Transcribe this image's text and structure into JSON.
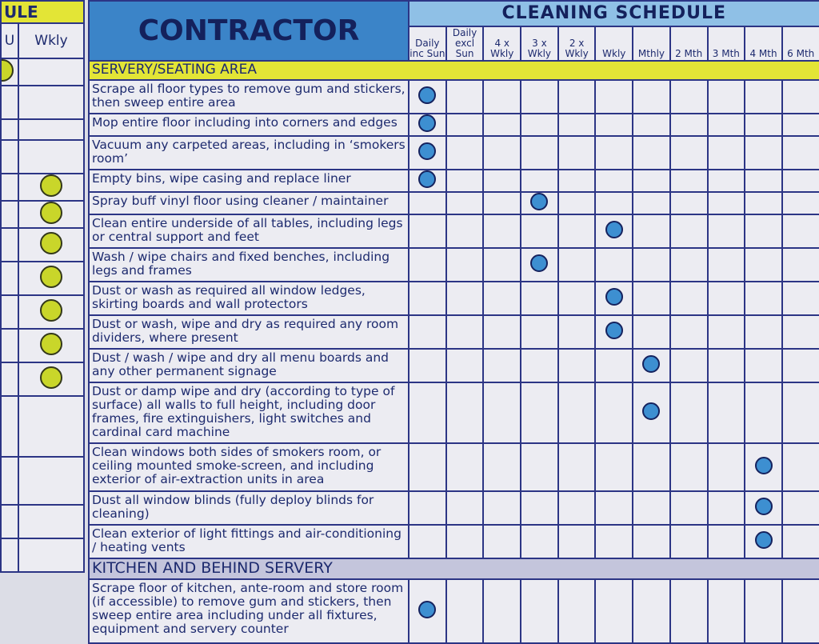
{
  "left_panel": {
    "title": "ULE",
    "columns": [
      "U",
      "Wkly"
    ]
  },
  "header": {
    "title": "CONTRACTOR",
    "schedule_title": "CLEANING SCHEDULE",
    "columns": [
      "Daily inc Sun",
      "Daily excl Sun",
      "4 x Wkly",
      "3 x Wkly",
      "2 x Wkly",
      "Wkly",
      "Mthly",
      "2 Mth",
      "3 Mth",
      "4 Mth",
      "6 Mth"
    ]
  },
  "sections": [
    {
      "title": "SERVERY/SEATING AREA",
      "tasks": [
        "Scrape all floor types to remove gum and stickers, then sweep entire area",
        "Mop entire floor including into corners and edges",
        "Vacuum any carpeted areas, including in ‘smokers room’",
        "Empty bins, wipe casing and replace liner",
        "Spray buff vinyl floor using cleaner / maintainer",
        "Clean entire underside of all tables, including legs or central support and feet",
        "Wash / wipe chairs and fixed benches, including legs and frames",
        "Dust or wash as required all window ledges, skirting boards and wall protectors",
        "Dust or wash, wipe and dry as required any room dividers, where present",
        "Dust / wash / wipe and dry all menu boards and any other permanent signage",
        "Dust or damp wipe and dry (according to type of surface) all walls to full height, including door frames, fire extinguishers, light switches and cardinal card machine",
        "Clean windows both sides of smokers room, or ceiling mounted smoke-screen, and including exterior of air-extraction units in area",
        "Dust all window blinds (fully deploy blinds for cleaning)",
        "Clean exterior of light fittings and air-conditioning / heating vents"
      ]
    },
    {
      "title": "KITCHEN AND BEHIND SERVERY",
      "tasks": [
        "Scrape floor of kitchen, ante-room and store room (if accessible) to remove gum and stickers, then sweep entire area including under all fixtures, equipment and servery counter"
      ]
    }
  ]
}
